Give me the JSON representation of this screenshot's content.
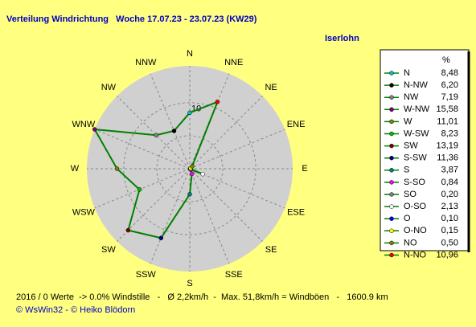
{
  "chart_data": {
    "type": "radar",
    "title": "Verteilung Windrichtung   Woche 17.07.23 - 23.07.23 (KW29)",
    "location": "Iserlohn",
    "legend_header": "%",
    "axis_labels": [
      "N",
      "NNE",
      "NE",
      "ENE",
      "E",
      "ESE",
      "SE",
      "SSE",
      "S",
      "SSW",
      "SW",
      "WSW",
      "W",
      "WNW",
      "NW",
      "NNW"
    ],
    "categories": [
      "N",
      "N-NW",
      "NW",
      "W-NW",
      "W",
      "W-SW",
      "SW",
      "S-SW",
      "S",
      "S-SO",
      "SO",
      "O-SO",
      "O",
      "O-NO",
      "NO",
      "N-NO"
    ],
    "values": [
      8.48,
      6.2,
      7.19,
      15.58,
      11.01,
      8.23,
      13.19,
      11.36,
      3.87,
      0.84,
      0.2,
      2.13,
      0.1,
      0.15,
      0.5,
      10.96
    ],
    "value_labels": [
      "8,48",
      "6,20",
      "7,19",
      "15,58",
      "11,01",
      "8,23",
      "13,19",
      "11,36",
      "3,87",
      "0,84",
      "0,20",
      "2,13",
      "0,10",
      "0,15",
      "0,50",
      "10,96"
    ],
    "marker_colors": [
      "#00c0c0",
      "#000000",
      "#808080",
      "#800080",
      "#808000",
      "#00c000",
      "#800000",
      "#000080",
      "#008080",
      "#ff00ff",
      "#808080",
      "#ffffff",
      "#0000ff",
      "#ffff00",
      "#808000",
      "#ff0000"
    ],
    "color": "#008000",
    "rlim": [
      0,
      15.58
    ],
    "rticks": [
      10
    ],
    "rgrid": [
      5,
      10
    ],
    "footer": "2016 / 0 Werte  -> 0.0% Windstille   -   Ø 2,2km/h  -  Max. 51,8km/h = Windböen   -   1600.9 km",
    "credits": "© WsWin32  - © Heiko Blödorn"
  }
}
